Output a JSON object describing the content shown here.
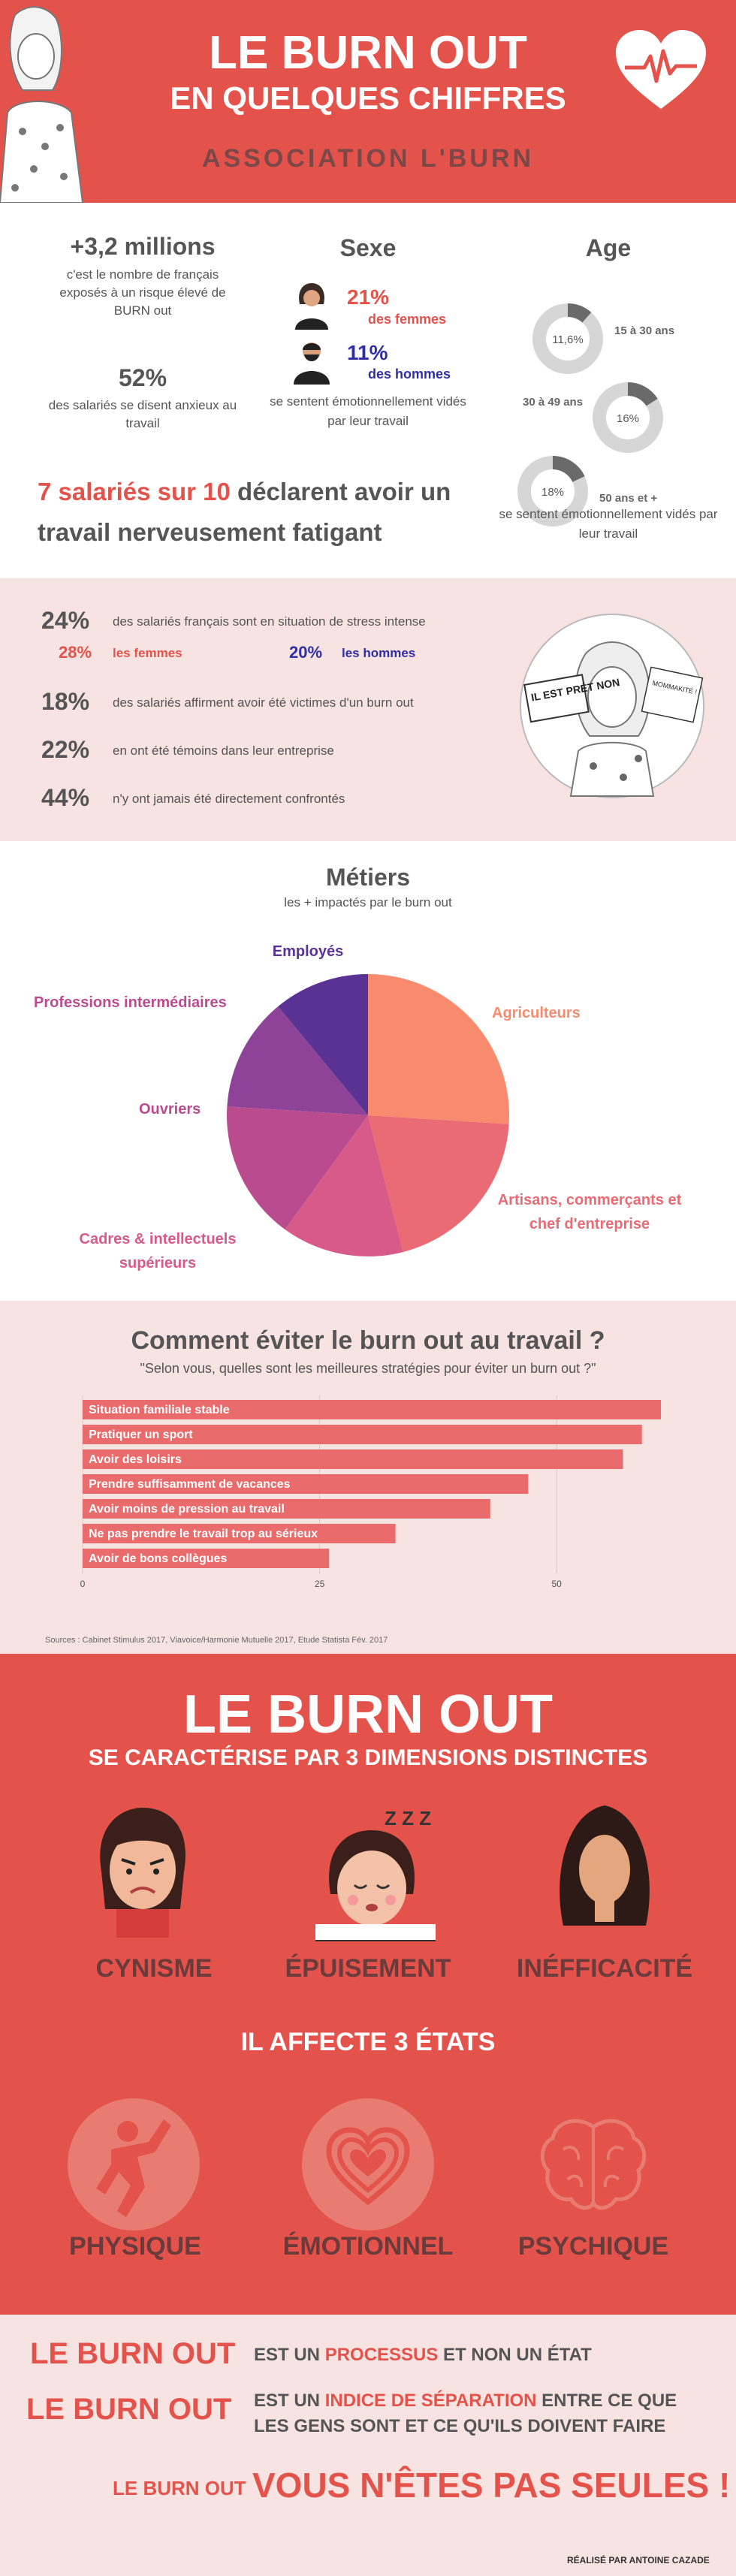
{
  "header": {
    "title_line1": "LE BURN OUT",
    "title_line2": "EN QUELQUES CHIFFRES",
    "subtitle": "ASSOCIATION L'BURN"
  },
  "stats": {
    "millions": "+3,2 millions",
    "millions_desc": "c'est le nombre de français exposés à un risque élevé de BURN out",
    "pct52": "52%",
    "pct52_desc": "des salariés se disent anxieux au travail",
    "headline_bold": "7 salariés sur 10",
    "headline_rest": " déclarent avoir un travail nerveusement fatigant"
  },
  "sexe": {
    "title": "Sexe",
    "women_pct": "21%",
    "women_label": "des femmes",
    "men_pct": "11%",
    "men_label": "des hommes",
    "desc": "se sentent émotionnellement vidés par leur travail"
  },
  "age": {
    "title": "Age",
    "donuts": [
      {
        "pct": "11,6%",
        "value": 11.6,
        "label": "15 à 30 ans"
      },
      {
        "pct": "16%",
        "value": 16,
        "label": "30 à 49 ans"
      },
      {
        "pct": "18%",
        "value": 18,
        "label": "50 ans et +"
      }
    ],
    "desc": "se sentent émotionnellement vidés par leur travail"
  },
  "stress": {
    "rows": [
      {
        "pct": "24%",
        "text": "des salariés français sont en situation de stress intense"
      },
      {
        "pct": "18%",
        "text": "des salariés affirment avoir été victimes d'un burn out"
      },
      {
        "pct": "22%",
        "text": "en ont été témoins dans leur entreprise"
      },
      {
        "pct": "44%",
        "text": "n'y ont jamais été directement confrontés"
      }
    ],
    "women_pct": "28%",
    "women_label": "les femmes",
    "men_pct": "20%",
    "men_label": "les hommes",
    "sticker_texts": [
      "IL EST PRÉT NON",
      "MOMMAKITÉ !"
    ]
  },
  "metiers": {
    "title": "Métiers",
    "subtitle": "les + impactés par le burn out",
    "labels": {
      "employes": "Employés",
      "intermediaires": "Professions intermédiaires",
      "agriculteurs": "Agriculteurs",
      "ouvriers": "Ouvriers",
      "artisans": "Artisans, commerçants et chef d'entreprise",
      "cadres": "Cadres & intellectuels supérieurs"
    },
    "colors": [
      "#f88b6e",
      "#ea6b73",
      "#d85a88",
      "#ba4b8f",
      "#8e4399",
      "#5a3293"
    ]
  },
  "chart_data": {
    "type": "bar",
    "title": "Comment éviter le burn out au travail ?",
    "subtitle": "\"Selon vous, quelles sont les meilleures stratégies pour éviter un burn out ?\"",
    "categories": [
      "Situation familiale stable",
      "Pratiquer un sport",
      "Avoir des loisirs",
      "Prendre suffisamment de vacances",
      "Avoir moins de pression au travail",
      "Ne pas prendre le travail trop au sérieux",
      "Avoir de bons collègues"
    ],
    "values": [
      61,
      59,
      57,
      47,
      43,
      33,
      26
    ],
    "xlim": [
      0,
      61
    ],
    "ticks": [
      "0",
      "25",
      "50"
    ],
    "orientation": "horizontal",
    "color": "#ea6b6b"
  },
  "sources": "Sources : Cabinet Stimulus 2017, Viavoice/Harmonie Mutuelle 2017, Etude Statista Fév. 2017",
  "dimensions": {
    "title": "LE BURN OUT",
    "subtitle": "SE CARACTÉRISE PAR 3 DIMENSIONS DISTINCTES",
    "items": [
      "CYNISME",
      "ÉPUISEMENT",
      "INÉFFICACITÉ"
    ],
    "zz": "Z Z Z"
  },
  "etats": {
    "title": "IL AFFECTE 3 ÉTATS",
    "items": [
      "PHYSIQUE",
      "ÉMOTIONNEL",
      "PSYCHIQUE"
    ]
  },
  "footer": {
    "line1_a": "LE BURN OUT",
    "line1_b": "EST UN ",
    "line1_c": "PROCESSUS",
    "line1_d": " ET NON UN ÉTAT",
    "line2_a": "LE BURN OUT",
    "line2_b": "EST UN ",
    "line2_c": "INDICE DE SÉPARATION",
    "line2_d": " ENTRE CE QUE LES GENS SONT ET CE QU'ILS DOIVENT FAIRE",
    "line3_a": "LE BURN OUT",
    "line3_b": "VOUS N'ÊTES PAS SEULES !",
    "credit": "RÉALISÉ PAR ANTOINE CAZADE"
  },
  "colors": {
    "red": "#e4534b",
    "pink": "#f7e3e2",
    "dark_blue": "#2f2fa5",
    "text": "#555555"
  }
}
